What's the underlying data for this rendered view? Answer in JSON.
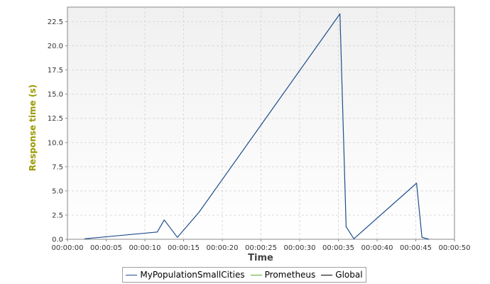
{
  "chart_data": {
    "type": "line",
    "title": "",
    "xlabel": "Time",
    "ylabel": "Response time (s)",
    "ylabel_color": "#999900",
    "xlim": [
      0,
      50
    ],
    "ylim": [
      0,
      24
    ],
    "x_tick_values": [
      0,
      5,
      10,
      15,
      20,
      25,
      30,
      35,
      40,
      45,
      50
    ],
    "x_tick_labels": [
      "00:00:00",
      "00:00:05",
      "00:00:10",
      "00:00:15",
      "00:00:20",
      "00:00:25",
      "00:00:30",
      "00:00:35",
      "00:00:40",
      "00:00:45",
      "00:00:50"
    ],
    "y_tick_values": [
      0,
      2.5,
      5,
      7.5,
      10,
      12.5,
      15,
      17.5,
      20,
      22.5
    ],
    "y_tick_labels": [
      "0.0",
      "2.5",
      "5.0",
      "7.5",
      "10.0",
      "12.5",
      "15.0",
      "17.5",
      "20.0",
      "22.5"
    ],
    "grid": true,
    "legend_position": "bottom",
    "series": [
      {
        "name": "MyPopulationSmallCities",
        "color": "#1f4e8c",
        "x": [
          2.2,
          11.6,
          12.5,
          14.2,
          17.0,
          35.2,
          36.0,
          37.0,
          45.1,
          45.8,
          46.7
        ],
        "y": [
          0.05,
          0.75,
          2.0,
          0.2,
          2.8,
          23.3,
          1.3,
          0.05,
          5.8,
          0.2,
          0.0
        ]
      },
      {
        "name": "Prometheus",
        "color": "#5aaa3c",
        "x": [],
        "y": []
      },
      {
        "name": "Global",
        "color": "#000000",
        "x": [],
        "y": []
      }
    ]
  }
}
